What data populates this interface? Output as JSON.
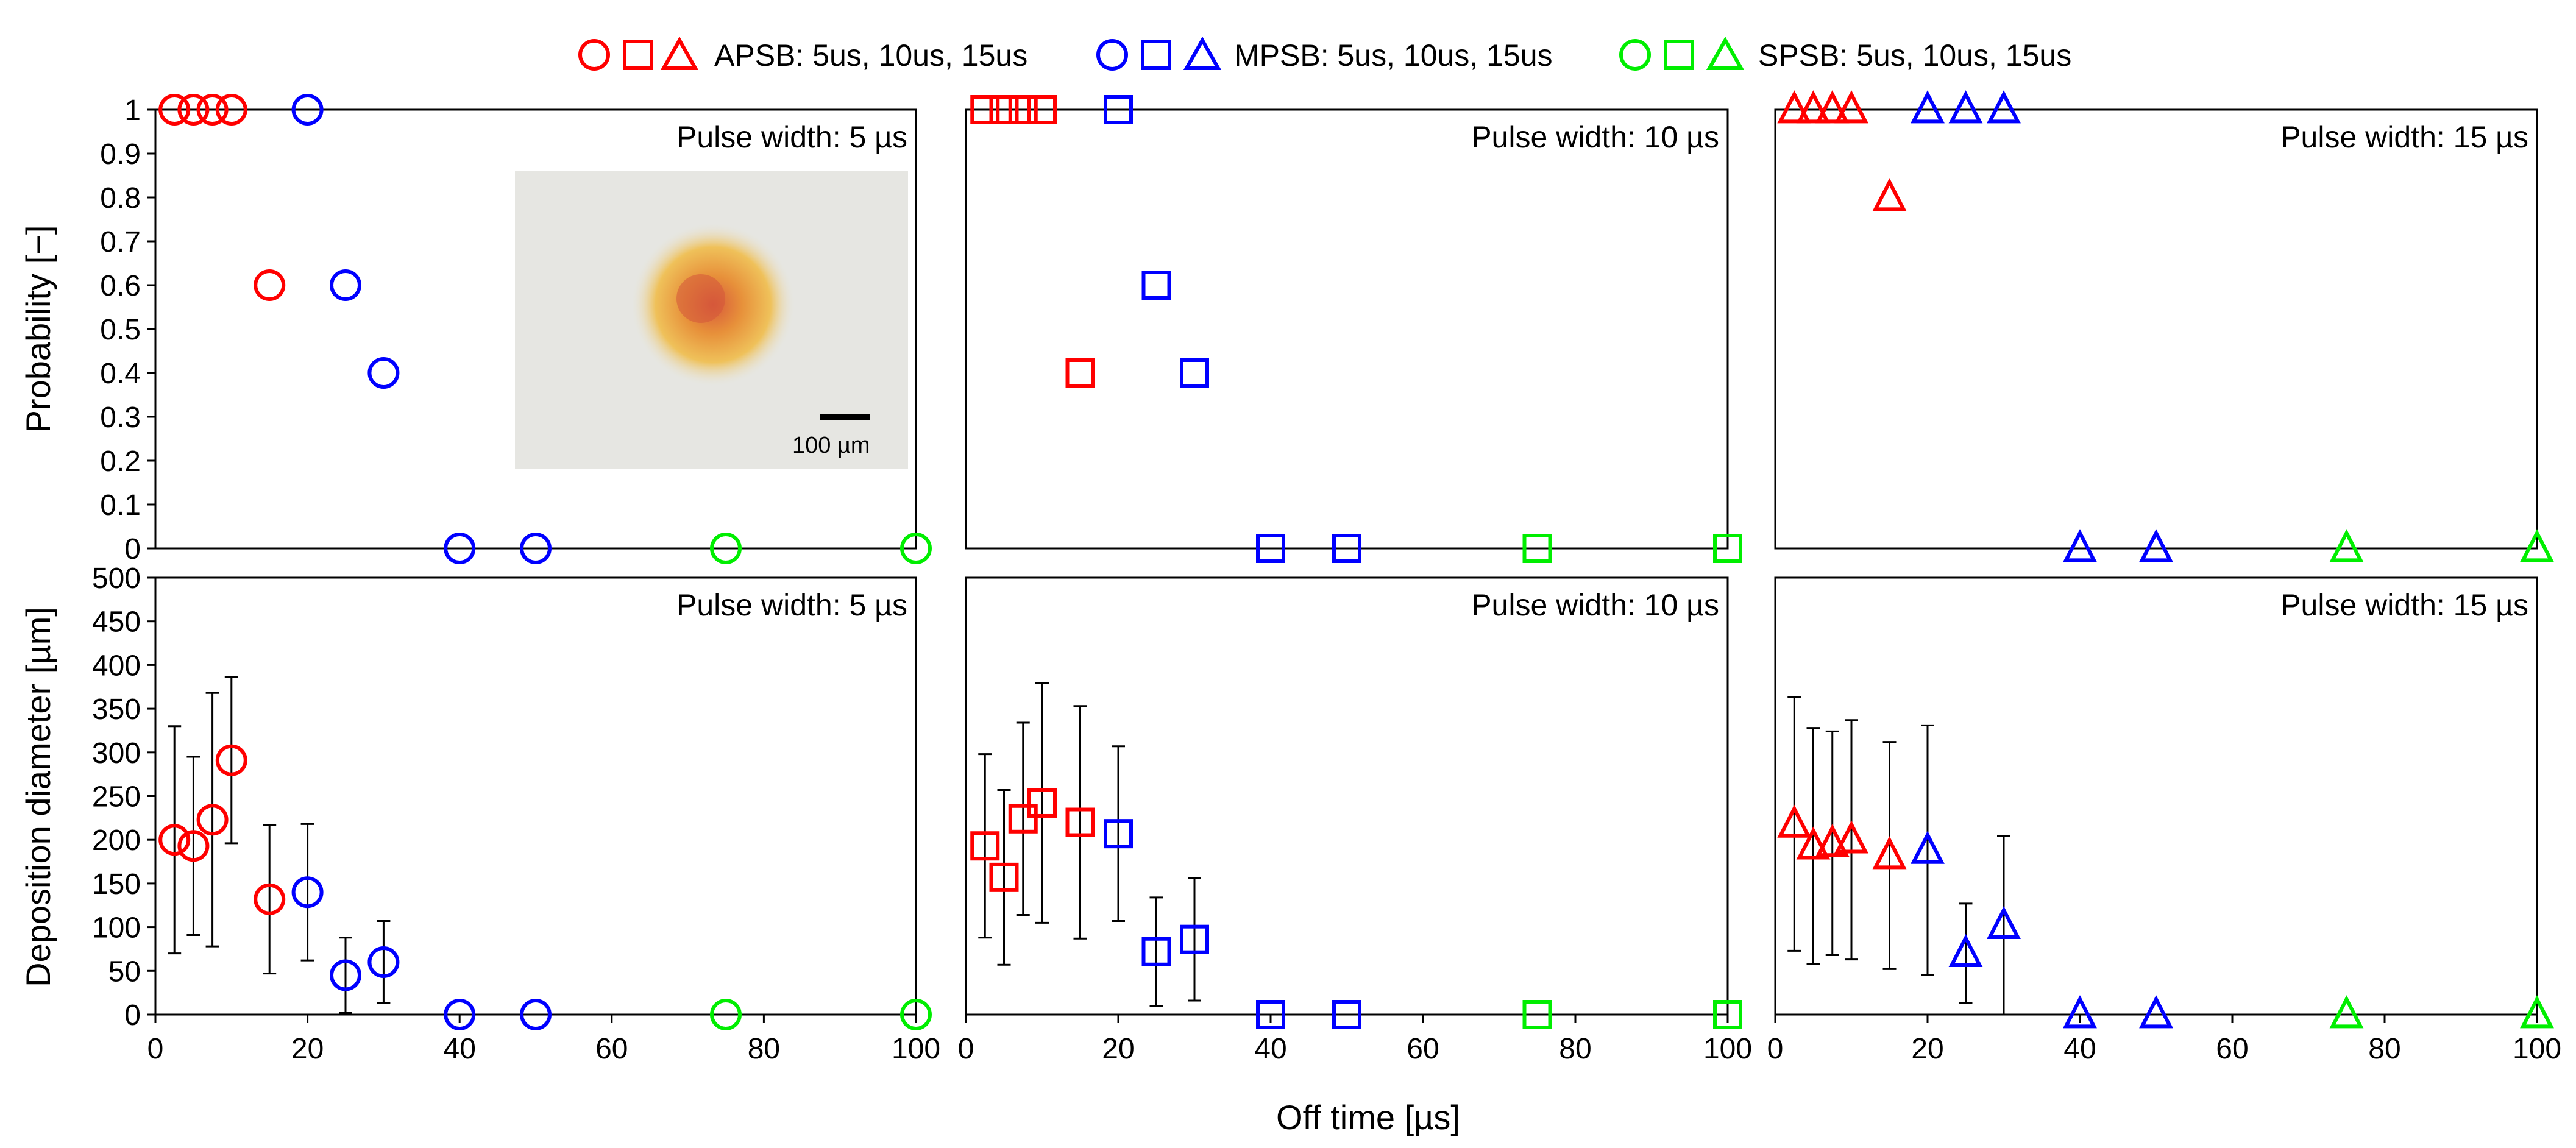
{
  "legend": [
    {
      "label": "APSB: 5us, 10us, 15us",
      "color": "#ff0000"
    },
    {
      "label": "MPSB: 5us, 10us, 15us",
      "color": "#0000ff"
    },
    {
      "label": "SPSB: 5us, 10us, 15us",
      "color": "#00ee00"
    }
  ],
  "x_axis_label": "Off time [µs]",
  "inset": {
    "scale_label": "100 µm",
    "description": "microscope image of deposition spot"
  },
  "chart_data": [
    {
      "type": "scatter",
      "title": "Pulse width: 5 µs",
      "marker": "circle",
      "xlabel": "",
      "ylabel": "Probability [−]",
      "xlim": [
        0,
        100
      ],
      "ylim": [
        0,
        1
      ],
      "xticks": [],
      "yticks": [
        0,
        0.1,
        0.2,
        0.3,
        0.4,
        0.5,
        0.6,
        0.7,
        0.8,
        0.9,
        1
      ],
      "series": [
        {
          "name": "APSB",
          "color": "#ff0000",
          "x": [
            2.5,
            5,
            7.5,
            10,
            15
          ],
          "y": [
            1,
            1,
            1,
            1,
            0.6
          ]
        },
        {
          "name": "MPSB",
          "color": "#0000ff",
          "x": [
            20,
            25,
            30,
            40,
            50
          ],
          "y": [
            1,
            0.6,
            0.4,
            0,
            0
          ]
        },
        {
          "name": "SPSB",
          "color": "#00ee00",
          "x": [
            75,
            100
          ],
          "y": [
            0,
            0
          ]
        }
      ]
    },
    {
      "type": "scatter",
      "title": "Pulse width: 10 µs",
      "marker": "square",
      "xlabel": "",
      "ylabel": "",
      "xlim": [
        0,
        100
      ],
      "ylim": [
        0,
        1
      ],
      "xticks": [],
      "yticks": [],
      "series": [
        {
          "name": "APSB",
          "color": "#ff0000",
          "x": [
            2.5,
            5,
            7.5,
            10,
            15
          ],
          "y": [
            1,
            1,
            1,
            1,
            0.4
          ]
        },
        {
          "name": "MPSB",
          "color": "#0000ff",
          "x": [
            20,
            25,
            30,
            40,
            50
          ],
          "y": [
            1,
            0.6,
            0.4,
            0,
            0
          ]
        },
        {
          "name": "SPSB",
          "color": "#00ee00",
          "x": [
            75,
            100
          ],
          "y": [
            0,
            0
          ]
        }
      ]
    },
    {
      "type": "scatter",
      "title": "Pulse width: 15 µs",
      "marker": "triangle",
      "xlabel": "",
      "ylabel": "",
      "xlim": [
        0,
        100
      ],
      "ylim": [
        0,
        1
      ],
      "xticks": [],
      "yticks": [],
      "series": [
        {
          "name": "APSB",
          "color": "#ff0000",
          "x": [
            2.5,
            5,
            7.5,
            10,
            15
          ],
          "y": [
            1,
            1,
            1,
            1,
            0.8
          ]
        },
        {
          "name": "MPSB",
          "color": "#0000ff",
          "x": [
            20,
            25,
            30,
            40,
            50
          ],
          "y": [
            1,
            1,
            1,
            0,
            0
          ]
        },
        {
          "name": "SPSB",
          "color": "#00ee00",
          "x": [
            75,
            100
          ],
          "y": [
            0,
            0
          ]
        }
      ]
    },
    {
      "type": "scatter",
      "title": "Pulse width: 5 µs",
      "marker": "circle",
      "xlabel": "",
      "ylabel": "Deposition diameter [µm]",
      "xlim": [
        0,
        100
      ],
      "ylim": [
        0,
        500
      ],
      "xticks": [
        0,
        20,
        40,
        60,
        80,
        100
      ],
      "yticks": [
        0,
        50,
        100,
        150,
        200,
        250,
        300,
        350,
        400,
        450,
        500
      ],
      "series": [
        {
          "name": "APSB",
          "color": "#ff0000",
          "x": [
            2.5,
            5,
            7.5,
            10,
            15
          ],
          "y": [
            200,
            193,
            223,
            291,
            132
          ],
          "err": [
            130,
            102,
            145,
            95,
            85
          ]
        },
        {
          "name": "MPSB",
          "color": "#0000ff",
          "x": [
            20,
            25,
            30,
            40,
            50
          ],
          "y": [
            140,
            45,
            60,
            0,
            0
          ],
          "err": [
            78,
            43,
            47,
            0,
            0
          ]
        },
        {
          "name": "SPSB",
          "color": "#00ee00",
          "x": [
            75,
            100
          ],
          "y": [
            0,
            0
          ],
          "err": [
            0,
            0
          ]
        }
      ]
    },
    {
      "type": "scatter",
      "title": "Pulse width: 10 µs",
      "marker": "square",
      "xlabel": "",
      "ylabel": "",
      "xlim": [
        0,
        100
      ],
      "ylim": [
        0,
        500
      ],
      "xticks": [
        0,
        20,
        40,
        60,
        80,
        100
      ],
      "yticks": [],
      "series": [
        {
          "name": "APSB",
          "color": "#ff0000",
          "x": [
            2.5,
            5,
            7.5,
            10,
            15
          ],
          "y": [
            193,
            157,
            224,
            242,
            220
          ],
          "err": [
            105,
            100,
            110,
            137,
            133
          ]
        },
        {
          "name": "MPSB",
          "color": "#0000ff",
          "x": [
            20,
            25,
            30,
            40,
            50
          ],
          "y": [
            207,
            72,
            86,
            0,
            0
          ],
          "err": [
            100,
            62,
            70,
            0,
            0
          ]
        },
        {
          "name": "SPSB",
          "color": "#00ee00",
          "x": [
            75,
            100
          ],
          "y": [
            0,
            0
          ],
          "err": [
            0,
            0
          ]
        }
      ]
    },
    {
      "type": "scatter",
      "title": "Pulse width: 15 µs",
      "marker": "triangle",
      "xlabel": "",
      "ylabel": "",
      "xlim": [
        0,
        100
      ],
      "ylim": [
        0,
        500
      ],
      "xticks": [
        0,
        20,
        40,
        60,
        80,
        100
      ],
      "yticks": [],
      "series": [
        {
          "name": "APSB",
          "color": "#ff0000",
          "x": [
            2.5,
            5,
            7.5,
            10,
            15
          ],
          "y": [
            218,
            193,
            196,
            200,
            182
          ],
          "err": [
            145,
            135,
            128,
            137,
            130
          ]
        },
        {
          "name": "MPSB",
          "color": "#0000ff",
          "x": [
            20,
            25,
            30,
            40,
            50
          ],
          "y": [
            188,
            70,
            102,
            0,
            0
          ],
          "err": [
            143,
            57,
            102,
            0,
            0
          ]
        },
        {
          "name": "SPSB",
          "color": "#00ee00",
          "x": [
            75,
            100
          ],
          "y": [
            0,
            0
          ],
          "err": [
            0,
            0
          ]
        }
      ]
    }
  ]
}
